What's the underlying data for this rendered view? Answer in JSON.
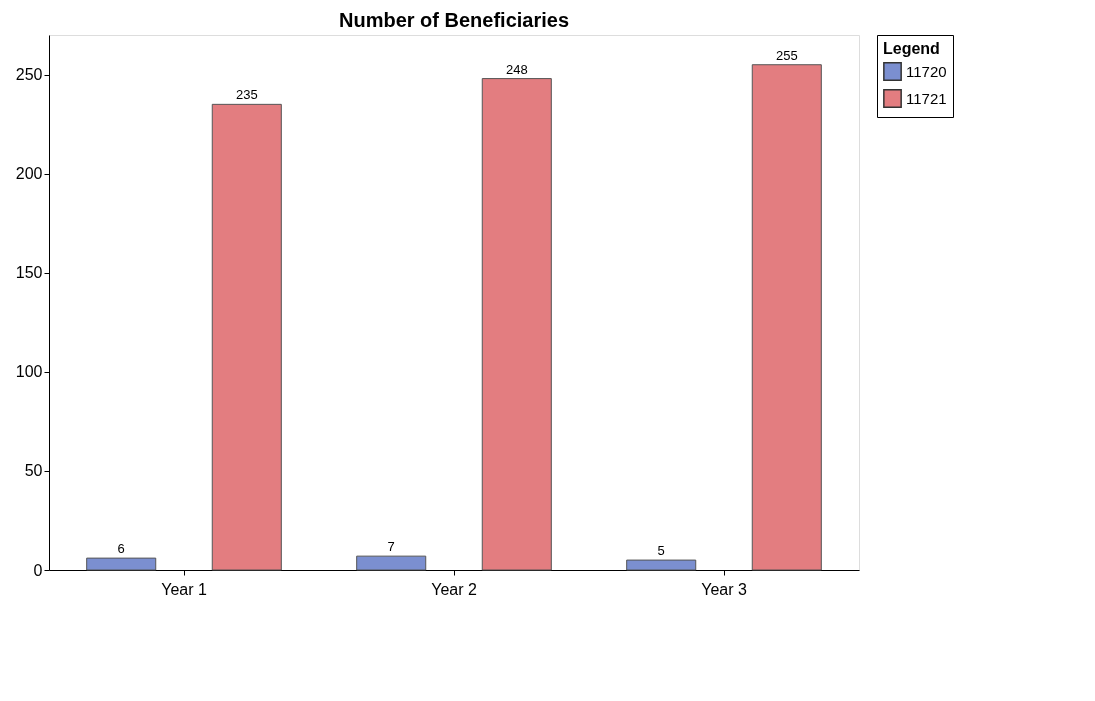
{
  "chart_data": {
    "type": "bar",
    "title": "Number of Beneficiaries",
    "legend_title": "Legend",
    "categories": [
      "Year 1",
      "Year 2",
      "Year 3"
    ],
    "series": [
      {
        "name": "11720",
        "color": "#7b8fd0",
        "values": [
          6,
          7,
          5
        ]
      },
      {
        "name": "11721",
        "color": "#e37d80",
        "values": [
          235,
          248,
          255
        ]
      }
    ],
    "ylim": [
      0,
      270
    ],
    "yticks": [
      0,
      50,
      100,
      150,
      200,
      250
    ],
    "data_labels": true,
    "grid": false,
    "legend": "right"
  }
}
